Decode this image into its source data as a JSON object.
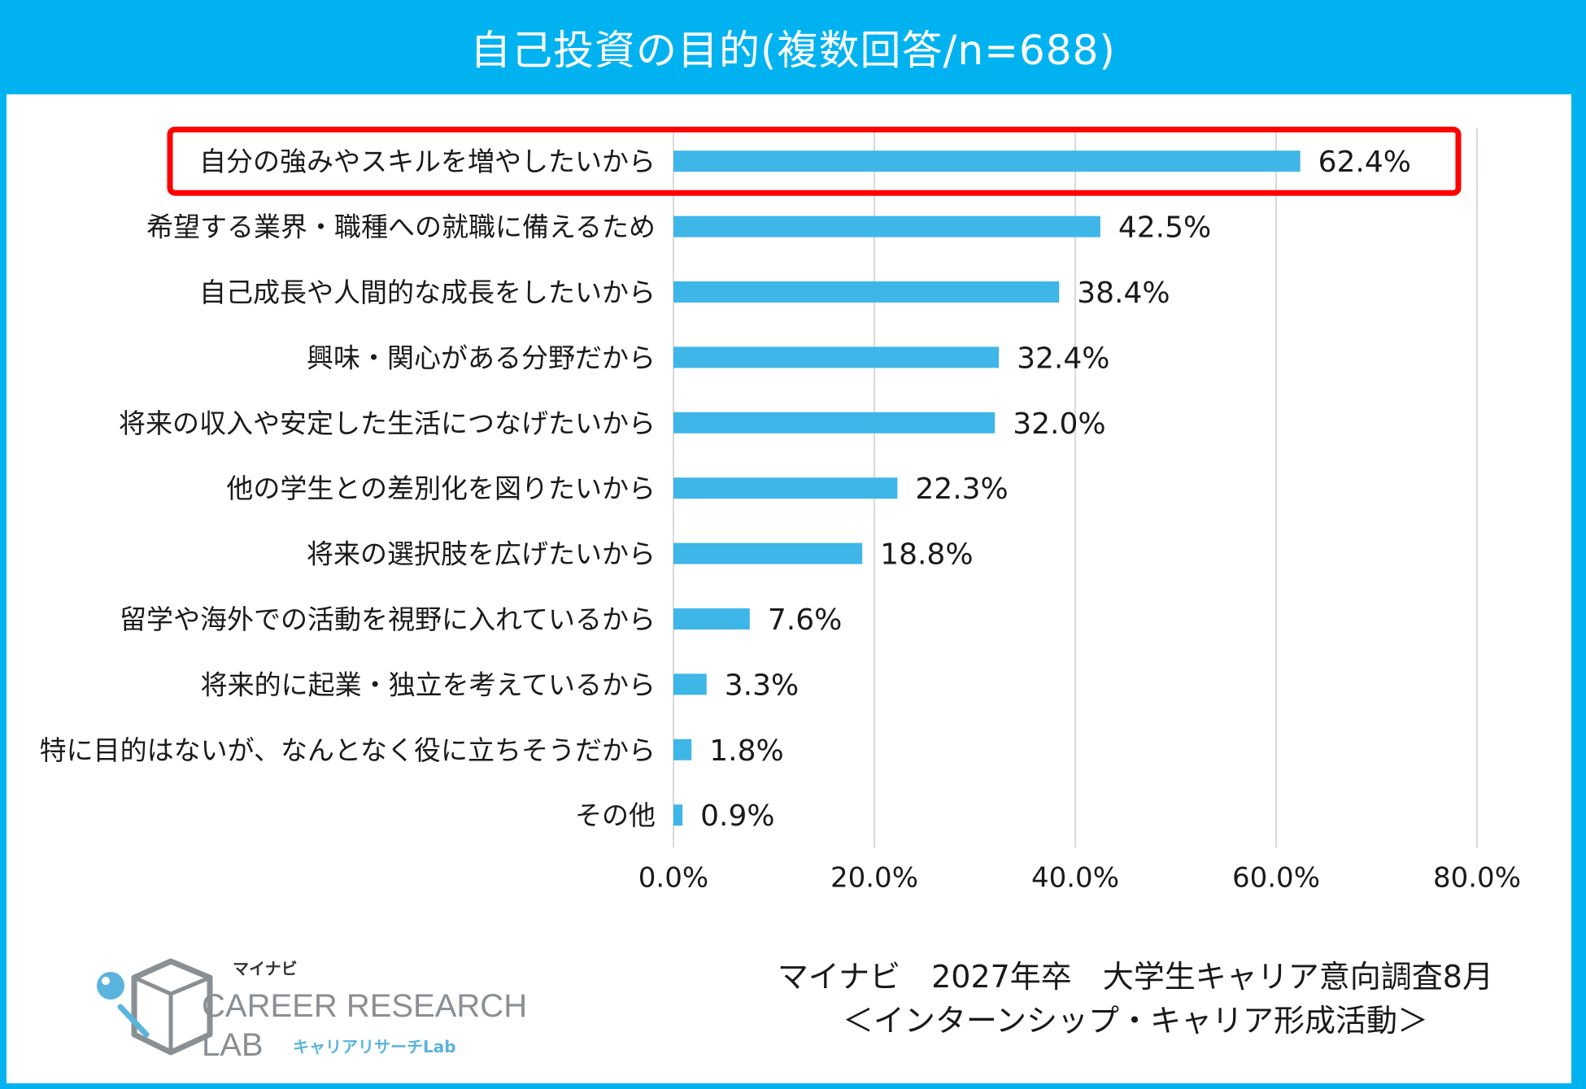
{
  "title": "自己投資の目的(複数回答/n=688)",
  "colors": {
    "header": "#00b3f0",
    "bar": "#3fb6e8",
    "highlight": "#ff0000",
    "grid": "#d9d9d9",
    "logo_blue": "#5ab4dc",
    "logo_gray": "#8a8f94"
  },
  "chart_data": {
    "type": "bar",
    "orientation": "horizontal",
    "categories": [
      "自分の強みやスキルを増やしたいから",
      "希望する業界・職種への就職に備えるため",
      "自己成長や人間的な成長をしたいから",
      "興味・関心がある分野だから",
      "将来の収入や安定した生活につなげたいから",
      "他の学生との差別化を図りたいから",
      "将来の選択肢を広げたいから",
      "留学や海外での活動を視野に入れているから",
      "将来的に起業・独立を考えているから",
      "特に目的はないが、なんとなく役に立ちそうだから",
      "その他"
    ],
    "values": [
      62.4,
      42.5,
      38.4,
      32.4,
      32.0,
      22.3,
      18.8,
      7.6,
      3.3,
      1.8,
      0.9
    ],
    "value_labels": [
      "62.4%",
      "42.5%",
      "38.4%",
      "32.4%",
      "32.0%",
      "22.3%",
      "18.8%",
      "7.6%",
      "3.3%",
      "1.8%",
      "0.9%"
    ],
    "xlim": [
      0,
      80
    ],
    "xticks": [
      "0.0%",
      "20.0%",
      "40.0%",
      "60.0%",
      "80.0%"
    ],
    "grid": true,
    "highlighted_category_index": 0
  },
  "logo": {
    "brand_small": "マイナビ",
    "line1": "CAREER RESEARCH",
    "line2": "LAB",
    "tagline": "キャリアリサーチLab"
  },
  "source": {
    "line1": "マイナビ　2027年卒　大学生キャリア意向調査8月",
    "line2": "＜インターンシップ・キャリア形成活動＞"
  }
}
